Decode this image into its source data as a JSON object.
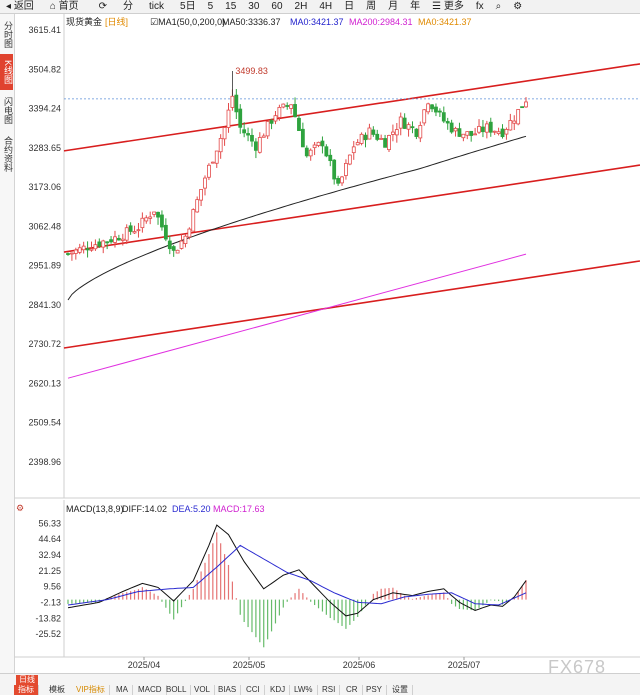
{
  "toolbar": {
    "items": [
      "返回",
      "首页",
      "⟳",
      "分",
      "tick",
      "5日",
      "日",
      "5",
      "15",
      "30",
      "60",
      "2H",
      "4H",
      "日",
      "周",
      "月",
      "年",
      "更多",
      "fx",
      "⌕",
      "⚙"
    ],
    "back_icon": "chevron-left-icon",
    "home_icon": "home-icon"
  },
  "sidebar": {
    "tabs": [
      "分时图",
      "K线图",
      "闪电图",
      "合约资料"
    ],
    "active_index": 1
  },
  "chart_data": [
    {
      "type": "candlestick",
      "title": "现货黄金",
      "period_tag": "[日线]",
      "legend": {
        "ma1": "MA1(50,0,200,0)",
        "ma50": "MA50:3336.37",
        "ma0": "MA0:3421.37",
        "ma200": "MA200:2984.31",
        "ma0b": "MA0:3421.37"
      },
      "y_ticks": [
        "3615.41",
        "3504.82",
        "3394.24",
        "3283.65",
        "3173.06",
        "3062.48",
        "2951.89",
        "2841.30",
        "2730.72",
        "2620.13",
        "2509.54",
        "2398.96"
      ],
      "ylim": [
        2398.96,
        3615.41
      ],
      "annotation": "3499.83",
      "last_price": 3421.37,
      "colors": {
        "up": "#e34a4a",
        "down": "#2ea33e",
        "ma50": "#222222",
        "ma200": "#e030e0",
        "channel": "#d81e1e",
        "price_line": "#5b8fd8"
      }
    },
    {
      "type": "bar",
      "title": "MACD(13,8,9)",
      "legend": {
        "diff": "DIFF:14.02",
        "dea": "DEA:5.20",
        "macd": "MACD:17.63"
      },
      "y_ticks": [
        "56.33",
        "44.64",
        "32.94",
        "21.25",
        "9.56",
        "-2.13",
        "-13.82",
        "-25.52"
      ],
      "ylim": [
        -37.2,
        61.0
      ],
      "x_ticks": [
        "2025/04",
        "2025/05",
        "2025/06",
        "2025/07"
      ],
      "colors": {
        "diff": "#111111",
        "dea": "#2a2ad0",
        "hist_up": "#e57373",
        "hist_down": "#66bb6a"
      }
    }
  ],
  "bottom": {
    "tabs": [
      "日线",
      "模板"
    ],
    "indicators": [
      "指标",
      "VIP指标",
      "MA",
      "MACD",
      "BOLL",
      "VOL",
      "BIAS",
      "CCI",
      "KDJ",
      "LW%",
      "RSI",
      "CR",
      "PSY",
      "设置"
    ]
  },
  "watermark": "FX678"
}
